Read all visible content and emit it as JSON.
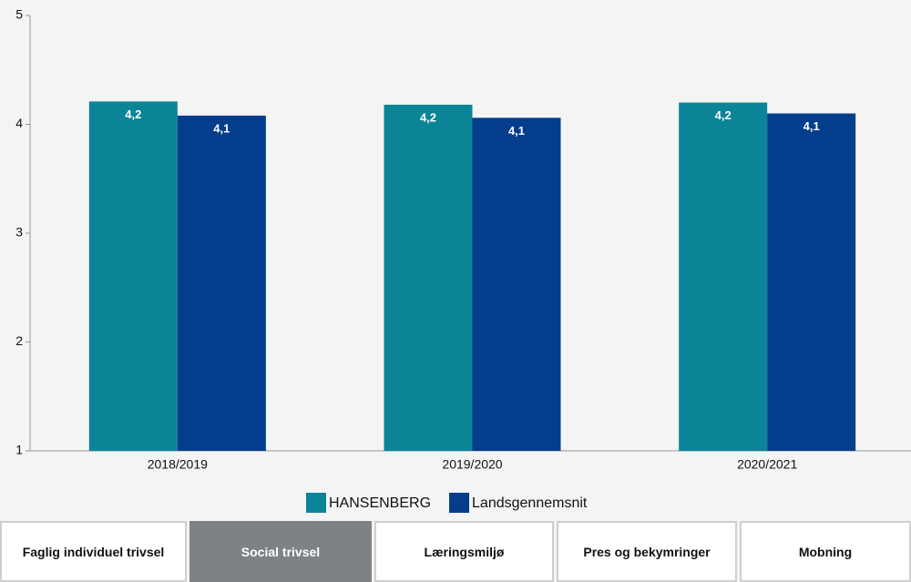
{
  "chart_data": {
    "type": "bar",
    "categories": [
      "2018/2019",
      "2019/2020",
      "2020/2021"
    ],
    "series": [
      {
        "name": "HANSENBERG",
        "color": "#0b8497",
        "values": [
          4.21,
          4.18,
          4.2
        ],
        "value_labels": [
          "4,2",
          "4,2",
          "4,2"
        ]
      },
      {
        "name": "Landsgennemsnit",
        "color": "#033d8c",
        "values": [
          4.08,
          4.06,
          4.1
        ],
        "value_labels": [
          "4,1",
          "4,1",
          "4,1"
        ]
      }
    ],
    "ylim": [
      1,
      5
    ],
    "yticks": [
      1,
      2,
      3,
      4,
      5
    ],
    "grid": false
  },
  "tabs": [
    "Faglig individuel trivsel",
    "Social trivsel",
    "Læringsmiljø",
    "Pres og bekymringer",
    "Mobning"
  ]
}
